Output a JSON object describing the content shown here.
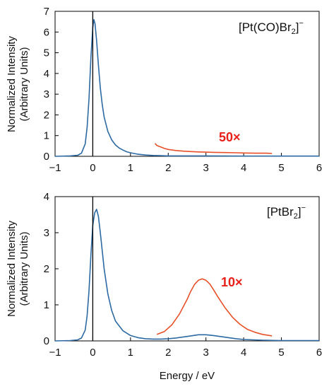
{
  "colors": {
    "main_series": "#2d6aa3",
    "scaled_series": "#e8502a",
    "scale_label": "#e8201a",
    "axis": "#000000"
  },
  "xlabel": "Energy / eV",
  "chart_data": [
    {
      "type": "line",
      "species_label": {
        "main": "[Pt(CO)Br",
        "sub": "2",
        "close": "]",
        "sup": "−"
      },
      "ylabel": [
        "Normalized Intensity",
        "(Arbitrary Units)"
      ],
      "xlim": [
        -1,
        6
      ],
      "ylim": [
        0,
        7
      ],
      "xticks": [
        "−1",
        "0",
        "1",
        "2",
        "3",
        "4",
        "5",
        "6"
      ],
      "yticks": [
        "0",
        "1",
        "2",
        "3",
        "4",
        "5",
        "6",
        "7"
      ],
      "scale_factor_label": "50×",
      "series": [
        {
          "role": "measured",
          "x": [
            -1.0,
            -0.6,
            -0.4,
            -0.3,
            -0.2,
            -0.15,
            -0.1,
            -0.05,
            0.0,
            0.03,
            0.06,
            0.1,
            0.15,
            0.2,
            0.25,
            0.3,
            0.4,
            0.5,
            0.6,
            0.7,
            0.8,
            0.9,
            1.0,
            1.2,
            1.4,
            1.6,
            1.8,
            2.0,
            2.5,
            3.0,
            4.0,
            5.0,
            6.0
          ],
          "y": [
            0.0,
            0.02,
            0.05,
            0.15,
            0.6,
            1.4,
            2.8,
            4.8,
            6.2,
            6.6,
            6.4,
            5.6,
            4.4,
            3.3,
            2.5,
            1.9,
            1.2,
            0.8,
            0.55,
            0.4,
            0.3,
            0.22,
            0.17,
            0.1,
            0.06,
            0.04,
            0.03,
            0.02,
            0.02,
            0.02,
            0.01,
            0.01,
            0.01
          ]
        },
        {
          "role": "scaled_50x",
          "x": [
            1.65,
            1.7,
            1.8,
            1.9,
            2.0,
            2.2,
            2.4,
            2.6,
            2.8,
            3.0,
            3.2,
            3.5,
            3.8,
            4.0,
            4.3,
            4.6,
            4.75
          ],
          "y": [
            0.62,
            0.52,
            0.45,
            0.38,
            0.33,
            0.28,
            0.25,
            0.23,
            0.21,
            0.2,
            0.19,
            0.18,
            0.17,
            0.16,
            0.15,
            0.15,
            0.14
          ]
        }
      ]
    },
    {
      "type": "line",
      "species_label": {
        "main": "[PtBr",
        "sub": "2",
        "close": "]",
        "sup": "−"
      },
      "ylabel": [
        "Normalized Intensity",
        "(Arbitrary Units)"
      ],
      "xlim": [
        -1,
        6
      ],
      "ylim": [
        0,
        4
      ],
      "xticks": [
        "−1",
        "0",
        "1",
        "2",
        "3",
        "4",
        "5",
        "6"
      ],
      "yticks": [
        "0",
        "1",
        "2",
        "3",
        "4"
      ],
      "scale_factor_label": "10×",
      "series": [
        {
          "role": "measured",
          "x": [
            -1.0,
            -0.6,
            -0.4,
            -0.3,
            -0.2,
            -0.15,
            -0.1,
            -0.05,
            0.0,
            0.05,
            0.1,
            0.15,
            0.2,
            0.25,
            0.3,
            0.4,
            0.5,
            0.6,
            0.8,
            1.0,
            1.2,
            1.4,
            1.6,
            1.8,
            2.0,
            2.2,
            2.4,
            2.6,
            2.8,
            2.9,
            3.0,
            3.2,
            3.4,
            3.6,
            3.8,
            4.0,
            4.5,
            5.0,
            6.0
          ],
          "y": [
            0.0,
            0.01,
            0.03,
            0.08,
            0.3,
            0.7,
            1.4,
            2.4,
            3.2,
            3.55,
            3.65,
            3.45,
            3.0,
            2.5,
            2.0,
            1.3,
            0.85,
            0.55,
            0.28,
            0.15,
            0.09,
            0.06,
            0.05,
            0.05,
            0.06,
            0.08,
            0.11,
            0.14,
            0.17,
            0.17,
            0.17,
            0.15,
            0.12,
            0.09,
            0.06,
            0.04,
            0.02,
            0.01,
            0.01
          ]
        },
        {
          "role": "scaled_10x",
          "x": [
            1.7,
            1.9,
            2.1,
            2.3,
            2.5,
            2.6,
            2.7,
            2.8,
            2.9,
            3.0,
            3.1,
            3.2,
            3.3,
            3.5,
            3.7,
            3.9,
            4.1,
            4.3,
            4.5,
            4.75
          ],
          "y": [
            0.18,
            0.26,
            0.45,
            0.75,
            1.15,
            1.38,
            1.57,
            1.68,
            1.72,
            1.68,
            1.58,
            1.42,
            1.25,
            0.93,
            0.66,
            0.46,
            0.32,
            0.24,
            0.18,
            0.14
          ]
        }
      ]
    }
  ]
}
